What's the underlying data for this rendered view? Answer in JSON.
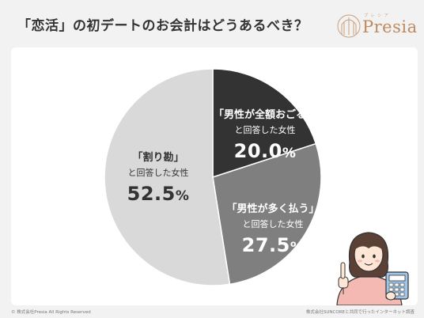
{
  "header": {
    "title": "「恋活」の初デートのお会計はどうあるべき？"
  },
  "logo": {
    "text": "Presia",
    "subtext": "プ レ シ ア",
    "color": "#c08a5e"
  },
  "chart_data": {
    "type": "pie",
    "slices": [
      {
        "label": "「男性が全額おごる」",
        "sublabel": "と回答した女性",
        "value": 20.0,
        "color": "#333333"
      },
      {
        "label": "「男性が多く払う」",
        "sublabel": "と回答した女性",
        "value": 27.5,
        "color": "#7f7f7f"
      },
      {
        "label": "「割り勘」",
        "sublabel": "と回答した女性",
        "value": 52.5,
        "color": "#d9d9d9"
      }
    ],
    "value_suffix": "%"
  },
  "footer": {
    "copyright": "© 株式会社Presia All Rights Reserved",
    "source": "株式会社SUNCOREと共同で行ったインターネット調査"
  }
}
